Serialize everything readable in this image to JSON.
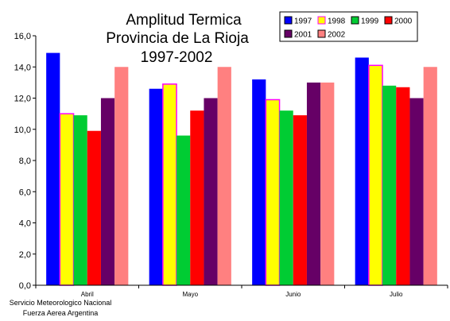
{
  "chart_data": {
    "type": "bar",
    "title": [
      "Amplitud Termica",
      "Provincia de La Rioja",
      "1997-2002"
    ],
    "xlabel": "",
    "ylabel": "",
    "ylim": [
      0,
      16
    ],
    "yticks": [
      "0,0",
      "2,0",
      "4,0",
      "6,0",
      "8,0",
      "10,0",
      "12,0",
      "14,0",
      "16,0"
    ],
    "categories": [
      "Abril",
      "Mayo",
      "Junio",
      "Julio"
    ],
    "series": [
      {
        "name": "1997",
        "color": "#0000ff",
        "values": [
          14.9,
          12.6,
          13.2,
          14.6
        ]
      },
      {
        "name": "1998",
        "color": "#ffff00",
        "border": "#ff00ff",
        "values": [
          11.0,
          12.9,
          11.9,
          14.1
        ]
      },
      {
        "name": "1999",
        "color": "#00cc33",
        "values": [
          10.9,
          9.6,
          11.2,
          12.8
        ]
      },
      {
        "name": "2000",
        "color": "#ff0000",
        "values": [
          9.9,
          11.2,
          10.9,
          12.7
        ]
      },
      {
        "name": "2001",
        "color": "#660066",
        "values": [
          12.0,
          12.0,
          13.0,
          12.0
        ]
      },
      {
        "name": "2002",
        "color": "#ff8080",
        "values": [
          14.0,
          14.0,
          13.0,
          14.0
        ]
      }
    ],
    "legend_position": "top-right",
    "grid": false
  },
  "source_note": [
    "Servicio Meteorologico Nacional",
    "Fuerza Aerea Argentina"
  ]
}
